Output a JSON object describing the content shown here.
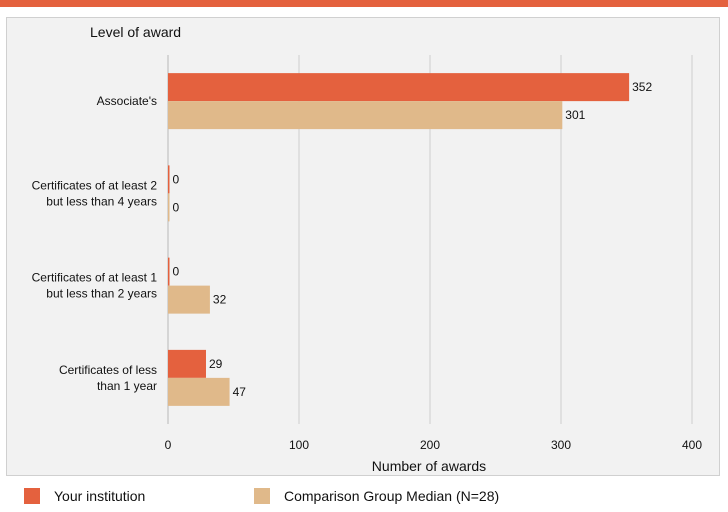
{
  "colors": {
    "top_bar": "#e4613e",
    "series_institution": "#e4613e",
    "series_comparison": "#e0b98a",
    "gridline": "#cfcfcf",
    "panel_bg": "#f2f2f2"
  },
  "chart_data": {
    "type": "bar",
    "orientation": "horizontal",
    "title": "Level of award",
    "xlabel": "Number of awards",
    "categories": [
      [
        "Associate's"
      ],
      [
        "Certificates of at least 2",
        "but less than 4 years"
      ],
      [
        "Certificates of at least 1",
        "but  less than 2 years"
      ],
      [
        "Certificates of less",
        "than 1 year"
      ]
    ],
    "series": [
      {
        "name": "Your institution",
        "values": [
          352,
          0,
          0,
          29
        ]
      },
      {
        "name": "Comparison Group Median (N=28)",
        "values": [
          301,
          0,
          32,
          47
        ]
      }
    ],
    "xlim": [
      0,
      400
    ],
    "xticks": [
      0,
      100,
      200,
      300,
      400
    ],
    "grid": true,
    "legend_position": "bottom"
  },
  "legend": {
    "items": [
      {
        "label": "Your institution"
      },
      {
        "label": "Comparison Group Median (N=28)"
      }
    ]
  }
}
